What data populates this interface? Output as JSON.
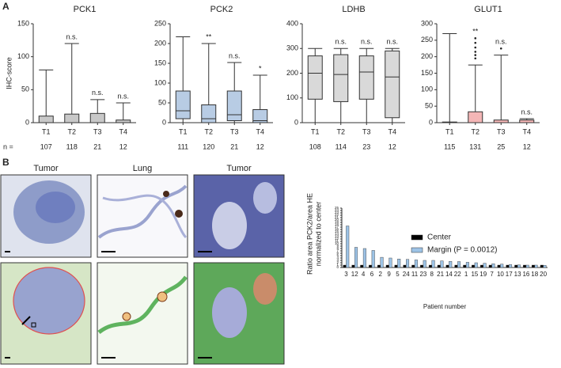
{
  "panel_labels": [
    "A",
    "B"
  ],
  "image_labels": [
    "Tumor",
    "Lung",
    "Tumor"
  ],
  "chart_data": [
    {
      "type": "box",
      "title": "PCK1",
      "ylabel": "IHC-score",
      "n_label": "n =",
      "categories": [
        "T1",
        "T2",
        "T3",
        "T4"
      ],
      "boxes": [
        [
          0,
          0,
          0,
          10,
          80
        ],
        [
          0,
          0,
          0,
          13,
          120
        ],
        [
          0,
          0,
          0,
          14,
          35
        ],
        [
          0,
          0,
          0,
          4,
          30
        ]
      ],
      "outliers": [
        [],
        [],
        [],
        []
      ],
      "annotations": [
        null,
        "n.s.",
        "n.s.",
        "n.s."
      ],
      "n_values": [
        107,
        118,
        21,
        12
      ],
      "color": "#c8c8c8",
      "ylim": [
        0,
        150
      ],
      "yticks": [
        0,
        50,
        100,
        150
      ]
    },
    {
      "type": "box",
      "title": "PCK2",
      "categories": [
        "T1",
        "T2",
        "T3",
        "T4"
      ],
      "boxes": [
        [
          0,
          10,
          30,
          80,
          217
        ],
        [
          0,
          0,
          10,
          45,
          200
        ],
        [
          0,
          5,
          20,
          80,
          152
        ],
        [
          0,
          0,
          5,
          33,
          120
        ]
      ],
      "outliers": [
        [],
        [],
        [],
        []
      ],
      "annotations": [
        null,
        "**",
        "n.s.",
        "*"
      ],
      "n_values": [
        111,
        120,
        21,
        12
      ],
      "color": "#b8cce4",
      "ylim": [
        0,
        250
      ],
      "yticks": [
        0,
        50,
        100,
        150,
        200,
        250
      ]
    },
    {
      "type": "box",
      "title": "LDHB",
      "categories": [
        "T1",
        "T2",
        "T3",
        "T4"
      ],
      "boxes": [
        [
          0,
          95,
          200,
          270,
          300
        ],
        [
          0,
          85,
          195,
          275,
          300
        ],
        [
          0,
          95,
          205,
          270,
          300
        ],
        [
          0,
          20,
          185,
          290,
          300
        ]
      ],
      "outliers": [
        [],
        [],
        [],
        []
      ],
      "annotations": [
        null,
        "n.s.",
        "n.s.",
        "n.s."
      ],
      "n_values": [
        108,
        114,
        23,
        12
      ],
      "color": "#d9d9d9",
      "ylim": [
        0,
        400
      ],
      "yticks": [
        0,
        100,
        200,
        300,
        400
      ]
    },
    {
      "type": "box",
      "title": "GLUT1",
      "categories": [
        "T1",
        "T2",
        "T3",
        "T4"
      ],
      "boxes": [
        [
          0,
          0,
          0,
          2,
          270
        ],
        [
          0,
          0,
          0,
          33,
          175
        ],
        [
          0,
          0,
          0,
          8,
          205
        ],
        [
          0,
          0,
          0,
          8,
          12
        ]
      ],
      "outliers": [
        [],
        [
          195,
          205,
          215,
          228,
          242,
          256
        ],
        [
          225
        ],
        []
      ],
      "annotations": [
        null,
        "**",
        "n.s.",
        "n.s."
      ],
      "n_values": [
        115,
        131,
        25,
        12
      ],
      "color": "#f4b6b6",
      "ylim": [
        0,
        300
      ],
      "yticks": [
        0,
        50,
        100,
        150,
        200,
        250,
        300
      ]
    },
    {
      "type": "bar",
      "xlabel": "Patient number",
      "ylabel": [
        "Ratio area PCK2/area HE",
        "normalized to center"
      ],
      "categories": [
        "3",
        "12",
        "4",
        "6",
        "2",
        "9",
        "5",
        "24",
        "11",
        "23",
        "8",
        "21",
        "14",
        "22",
        "1",
        "15",
        "19",
        "7",
        "10",
        "17",
        "13",
        "16",
        "18",
        "20"
      ],
      "series": [
        {
          "name": "Center",
          "color": "#000000",
          "values": [
            1,
            1,
            1,
            1,
            1,
            1,
            1,
            1,
            1,
            1,
            1,
            1,
            1,
            1,
            1,
            1,
            1,
            1,
            1,
            1,
            1,
            1,
            1,
            1
          ]
        },
        {
          "name": "Margin (P = 0.0012)",
          "color": "#9dc3e6",
          "values": [
            17.5,
            8.5,
            8,
            7.2,
            4.3,
            4,
            3.6,
            3.4,
            3.2,
            3,
            3,
            2.8,
            2.6,
            2.5,
            2.2,
            2,
            1.8,
            1.6,
            1.4,
            1.2,
            1.1,
            1,
            1,
            0.9
          ]
        }
      ],
      "ylim": [
        0,
        25
      ],
      "yticks": [
        0,
        1,
        2,
        3,
        4,
        5,
        6,
        7,
        8,
        9,
        10,
        11,
        12,
        13,
        14,
        15,
        16,
        17,
        18,
        19,
        20,
        21,
        22,
        23,
        24,
        25
      ]
    }
  ]
}
